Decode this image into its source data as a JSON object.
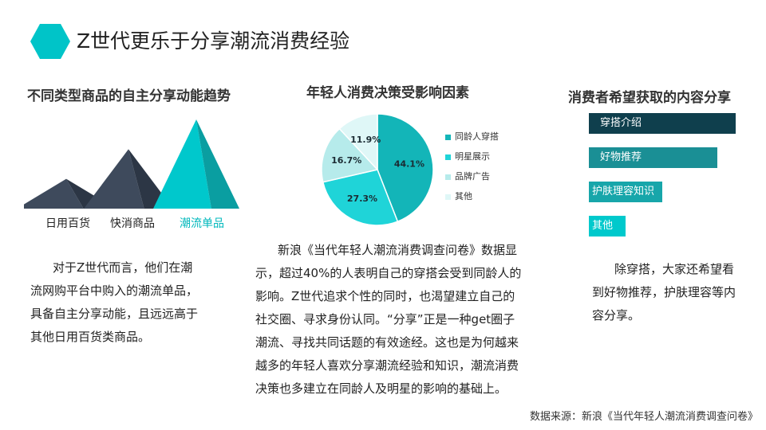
{
  "title": "Z世代更乐于分享潮流消费经验",
  "section1": {
    "title": "不同类型商品的自主分享动能趋势",
    "paragraph_lines": [
      "对于Z世代而言，他们在潮",
      "流网购平台中购入的潮流单品，",
      "具备自主分享动能，且远远高于",
      "其他日用百货类商品。"
    ]
  },
  "section2": {
    "title": "年轻人消费决策受影响因素",
    "paragraph_lines": [
      "新浪《当代年轻人潮流消费调查问卷》数据显",
      "示，超过40%的人表明自己的穿搭会受到同龄人的",
      "影响。Z世代追求个性的同时，也渴望建立自己的",
      "社交圈、寻求身份认同。“分享”正是一种get圈子",
      "潮流、寻找共同话题的有效途经。这也是为何越来",
      "越多的年轻人喜欢分享潮流经验和知识，潮流消费",
      "决策也多建立在同龄人及明星的影响的基础上。"
    ]
  },
  "section3": {
    "title": "消费者希望获取的内容分享",
    "paragraph_lines": [
      "除穿搭，大家还希望看",
      "到好物推荐，护肤理容等内",
      "容分享。"
    ]
  },
  "source": "数据来源：新浪《当代年轻人潮流消费调查问卷》",
  "colors": {
    "accent": "#00c4c8",
    "dark": "#3e4a5c",
    "navy": "#0f3f4d",
    "teal": "#1a8f95",
    "light": "#b9ecec",
    "pale": "#dff6f6"
  },
  "chart_data": [
    {
      "type": "area",
      "categories": [
        "日用百货",
        "快消商品",
        "潮流单品"
      ],
      "values": [
        1,
        2,
        3
      ],
      "highlight": "潮流单品"
    },
    {
      "type": "pie",
      "labels": [
        "同龄人穿搭",
        "明星展示",
        "品牌广告",
        "其他"
      ],
      "values": [
        44.1,
        27.3,
        16.7,
        11.9
      ],
      "value_labels": [
        "44.1%",
        "27.3%",
        "16.7%",
        "11.9%"
      ],
      "colors": [
        "#13b5b8",
        "#1fd4d8",
        "#b6ebeb",
        "#dff7f7"
      ],
      "legend": "right"
    },
    {
      "type": "bar",
      "orientation": "horizontal",
      "categories": [
        "穿搭介绍",
        "好物推荐",
        "护肤理容知识",
        "其他"
      ],
      "values": [
        4,
        3.5,
        2,
        1
      ],
      "colors": [
        "#0f3f4d",
        "#1a8f95",
        "#17a6aa",
        "#00c9cc"
      ]
    }
  ]
}
